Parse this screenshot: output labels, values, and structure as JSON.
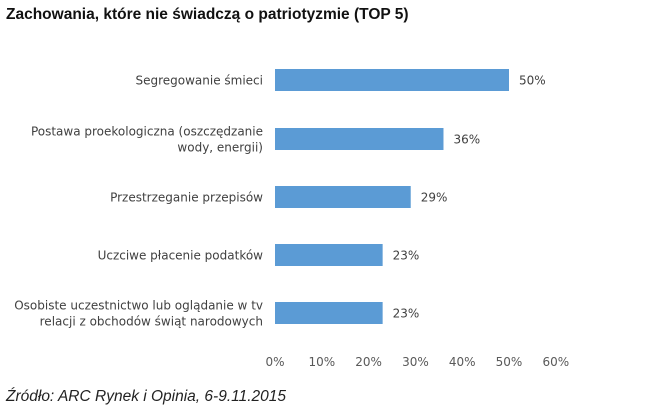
{
  "title": "Zachowania, które nie świadczą o patriotyzmie (TOP 5)",
  "source": "Źródło: ARC Rynek i Opinia, 6-9.11.2015",
  "colors": {
    "bar": "#5B9BD5",
    "axis_text": "#595959",
    "label_text": "#404040"
  },
  "chart_data": {
    "type": "bar",
    "orientation": "horizontal",
    "categories": [
      [
        "Segregowanie śmieci"
      ],
      [
        "Postawa proekologiczna (oszczędzanie",
        "wody, energii)"
      ],
      [
        "Przestrzeganie przepisów"
      ],
      [
        "Uczciwe płacenie podatków"
      ],
      [
        "Osobiste uczestnictwo lub oglądanie w tv",
        "relacji z obchodów świąt narodowych"
      ]
    ],
    "values": [
      50,
      36,
      29,
      23,
      23
    ],
    "data_labels": [
      "50%",
      "36%",
      "29%",
      "23%",
      "23%"
    ],
    "xlim": [
      0,
      60
    ],
    "ticks": [
      0,
      10,
      20,
      30,
      40,
      50,
      60
    ],
    "tick_labels": [
      "0%",
      "10%",
      "20%",
      "30%",
      "40%",
      "50%",
      "60%"
    ],
    "grid": false,
    "legend": "none"
  }
}
